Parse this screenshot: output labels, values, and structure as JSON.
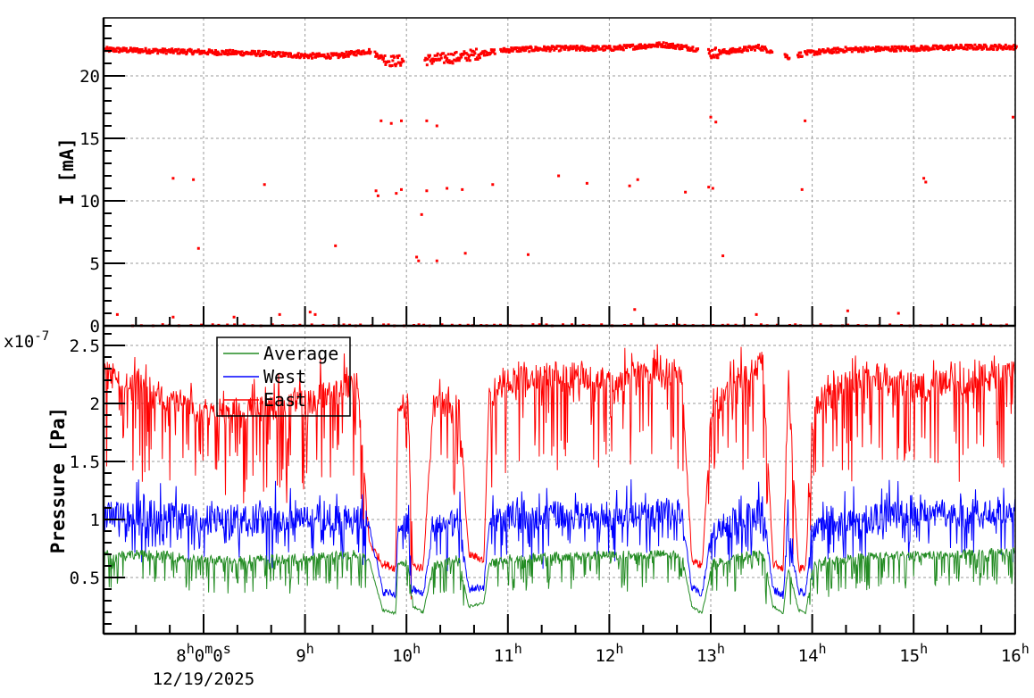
{
  "chart_data": [
    {
      "type": "scatter",
      "panel": "top",
      "title": "",
      "xlabel": "",
      "ylabel": "I [mA]",
      "ylim": [
        0,
        24.6
      ],
      "yticks": [
        "0",
        "5",
        "10",
        "15",
        "20"
      ],
      "grid": true,
      "x_range_hours": [
        7.0,
        16.0
      ],
      "series": [
        {
          "name": "I",
          "color": "#ff0000",
          "description": "Beam current, mostly ~22 mA with dropouts to 0 and scattered points",
          "x": [
            7.0,
            7.5,
            8.0,
            8.5,
            9.0,
            9.3,
            9.6,
            9.8,
            9.95,
            10.2,
            10.5,
            10.7,
            11.0,
            11.5,
            12.0,
            12.5,
            12.8,
            12.95,
            13.2,
            13.45,
            13.75,
            13.9,
            14.3,
            15.0,
            15.5,
            16.0
          ],
          "values": [
            22.1,
            22.0,
            21.9,
            21.8,
            21.6,
            21.6,
            22.0,
            21.2,
            21.2,
            21.3,
            21.5,
            21.8,
            22.1,
            22.2,
            22.2,
            22.5,
            22.2,
            21.8,
            22.0,
            22.3,
            21.5,
            21.8,
            22.1,
            22.2,
            22.3,
            22.3
          ]
        }
      ]
    },
    {
      "type": "line",
      "panel": "bottom",
      "title": "",
      "xlabel": "",
      "ylabel": "Pressure [Pa]",
      "y_multiplier": "x10^-7",
      "ylim": [
        0.0,
        2.66
      ],
      "yticks": [
        "0.5",
        "1",
        "1.5",
        "2",
        "2.5"
      ],
      "grid": true,
      "legend_position": "upper-left",
      "x": [
        7.0,
        7.5,
        8.0,
        8.5,
        9.0,
        9.5,
        9.62,
        9.75,
        9.88,
        9.9,
        10.0,
        10.05,
        10.15,
        10.25,
        10.5,
        10.6,
        10.75,
        10.8,
        11.0,
        11.5,
        12.0,
        12.5,
        12.7,
        12.8,
        12.9,
        13.0,
        13.3,
        13.5,
        13.6,
        13.7,
        13.75,
        13.85,
        13.92,
        14.0,
        14.5,
        15.0,
        15.5,
        16.0
      ],
      "series": [
        {
          "name": "Average",
          "color": "#228b22",
          "values": [
            0.7,
            0.7,
            0.65,
            0.66,
            0.67,
            0.7,
            0.65,
            0.22,
            0.19,
            0.62,
            0.64,
            0.25,
            0.2,
            0.6,
            0.66,
            0.25,
            0.28,
            0.62,
            0.66,
            0.68,
            0.69,
            0.7,
            0.7,
            0.25,
            0.19,
            0.62,
            0.68,
            0.7,
            0.25,
            0.19,
            0.6,
            0.22,
            0.19,
            0.62,
            0.68,
            0.69,
            0.7,
            0.72
          ]
        },
        {
          "name": "West",
          "color": "#0000ff",
          "values": [
            1.05,
            1.05,
            1.0,
            1.02,
            1.02,
            1.02,
            0.95,
            0.38,
            0.35,
            0.92,
            0.95,
            0.4,
            0.35,
            0.92,
            0.98,
            0.4,
            0.42,
            0.95,
            1.02,
            1.04,
            1.04,
            1.05,
            1.05,
            0.4,
            0.36,
            0.9,
            1.0,
            1.08,
            0.4,
            0.35,
            0.92,
            0.38,
            0.36,
            0.92,
            1.02,
            1.05,
            1.06,
            1.08
          ]
        },
        {
          "name": "East",
          "color": "#ff0000",
          "values": [
            2.25,
            2.1,
            1.9,
            1.95,
            2.0,
            2.2,
            0.8,
            0.62,
            0.58,
            1.95,
            2.0,
            0.6,
            0.58,
            2.0,
            2.0,
            0.7,
            0.65,
            2.1,
            2.2,
            2.25,
            2.2,
            2.3,
            2.2,
            0.65,
            0.6,
            2.0,
            2.2,
            2.35,
            0.62,
            0.58,
            2.25,
            0.58,
            0.58,
            2.0,
            2.25,
            2.15,
            2.2,
            2.25
          ]
        }
      ]
    }
  ],
  "x_axis": {
    "ticks": [
      {
        "hour": 8,
        "label_main": "8",
        "label_sup": "h",
        "label_mid": "0",
        "label_sup2": "m",
        "label_end": "0",
        "label_sup3": "s"
      },
      {
        "hour": 9,
        "label_main": "9",
        "label_sup": "h"
      },
      {
        "hour": 10,
        "label_main": "10",
        "label_sup": "h"
      },
      {
        "hour": 11,
        "label_main": "11",
        "label_sup": "h"
      },
      {
        "hour": 12,
        "label_main": "12",
        "label_sup": "h"
      },
      {
        "hour": 13,
        "label_main": "13",
        "label_sup": "h"
      },
      {
        "hour": 14,
        "label_main": "14",
        "label_sup": "h"
      },
      {
        "hour": 15,
        "label_main": "15",
        "label_sup": "h"
      },
      {
        "hour": 16,
        "label_main": "16",
        "label_sup": "h"
      }
    ],
    "date_label": "12/19/2025"
  },
  "top_panel": {
    "ylabel": "I [mA]",
    "yticks": [
      {
        "value": 0,
        "label": "0"
      },
      {
        "value": 5,
        "label": "5"
      },
      {
        "value": 10,
        "label": "10"
      },
      {
        "value": 15,
        "label": "15"
      },
      {
        "value": 20,
        "label": "20"
      }
    ]
  },
  "bottom_panel": {
    "ylabel": "Pressure [Pa]",
    "multiplier_base": "x10",
    "multiplier_exp": "-7",
    "yticks": [
      {
        "value": 0.5,
        "label": "0.5"
      },
      {
        "value": 1.0,
        "label": "1"
      },
      {
        "value": 1.5,
        "label": "1.5"
      },
      {
        "value": 2.0,
        "label": "2"
      },
      {
        "value": 2.5,
        "label": "2.5"
      }
    ]
  },
  "legend": {
    "items": [
      {
        "label": "Average",
        "color": "#228b22"
      },
      {
        "label": "West",
        "color": "#0000ff"
      },
      {
        "label": "East",
        "color": "#ff0000"
      }
    ]
  },
  "colors": {
    "east": "#ff0000",
    "west": "#0000ff",
    "average": "#228b22",
    "grid": "#999999",
    "axis": "#000000"
  }
}
